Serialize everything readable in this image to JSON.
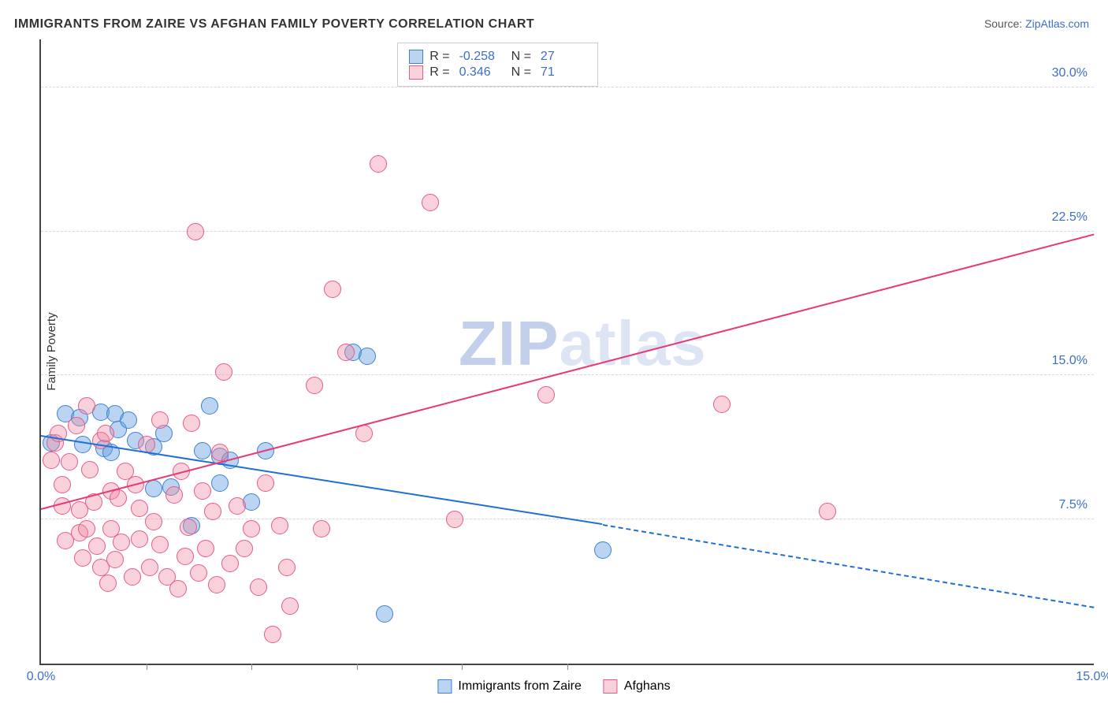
{
  "title": "IMMIGRANTS FROM ZAIRE VS AFGHAN FAMILY POVERTY CORRELATION CHART",
  "source_prefix": "Source: ",
  "source_link": "ZipAtlas.com",
  "ylabel": "Family Poverty",
  "watermark_zip": "ZIP",
  "watermark_atlas": "atlas",
  "chart": {
    "type": "scatter",
    "xlim": [
      0,
      15
    ],
    "ylim": [
      0,
      32.5
    ],
    "x_ticks": [
      0,
      15
    ],
    "x_tick_labels": [
      "0.0%",
      "15.0%"
    ],
    "x_minor_ticks": [
      1.5,
      3,
      4.5,
      6,
      7.5
    ],
    "y_gridlines": [
      7.5,
      15,
      22.5,
      30
    ],
    "y_tick_labels": [
      "7.5%",
      "15.0%",
      "22.5%",
      "30.0%"
    ],
    "grid_color": "#d8d8d8",
    "background_color": "#ffffff",
    "axis_color": "#444444",
    "tick_label_color": "#3b6fc9",
    "marker_radius": 11,
    "marker_opacity": 0.55,
    "series": [
      {
        "name": "Immigrants from Zaire",
        "fill_color": "rgba(105,160,225,0.45)",
        "stroke_color": "#3b82d6",
        "r_value": "-0.258",
        "n_value": "27",
        "trend": {
          "x0": 0,
          "y0": 11.8,
          "x1": 8.0,
          "y1": 7.2,
          "x1_full": 15,
          "y1_full": 2.9,
          "color": "#1f6fd4",
          "dash_after_data": true
        },
        "points": [
          [
            0.15,
            11.5
          ],
          [
            0.35,
            13.0
          ],
          [
            0.55,
            12.8
          ],
          [
            0.6,
            11.4
          ],
          [
            0.85,
            13.1
          ],
          [
            0.9,
            11.2
          ],
          [
            1.05,
            13.0
          ],
          [
            1.1,
            12.2
          ],
          [
            1.0,
            11.0
          ],
          [
            1.25,
            12.7
          ],
          [
            1.35,
            11.6
          ],
          [
            1.6,
            9.1
          ],
          [
            1.6,
            11.3
          ],
          [
            1.75,
            12.0
          ],
          [
            1.85,
            9.2
          ],
          [
            2.15,
            7.2
          ],
          [
            2.3,
            11.1
          ],
          [
            2.4,
            13.4
          ],
          [
            2.55,
            10.8
          ],
          [
            2.55,
            9.4
          ],
          [
            2.7,
            10.6
          ],
          [
            3.0,
            8.4
          ],
          [
            3.2,
            11.1
          ],
          [
            4.45,
            16.2
          ],
          [
            4.65,
            16.0
          ],
          [
            4.9,
            2.6
          ],
          [
            8.0,
            5.9
          ]
        ]
      },
      {
        "name": "Afghans",
        "fill_color": "rgba(240,140,165,0.40)",
        "stroke_color": "#e55a8a",
        "r_value": "0.346",
        "n_value": "71",
        "trend": {
          "x0": 0,
          "y0": 8.0,
          "x1": 15,
          "y1": 22.3,
          "color": "#e63b76",
          "dash_after_data": false
        },
        "points": [
          [
            0.15,
            10.6
          ],
          [
            0.2,
            11.5
          ],
          [
            0.25,
            12.0
          ],
          [
            0.3,
            9.3
          ],
          [
            0.3,
            8.2
          ],
          [
            0.35,
            6.4
          ],
          [
            0.4,
            10.5
          ],
          [
            0.5,
            12.4
          ],
          [
            0.55,
            8.0
          ],
          [
            0.55,
            6.8
          ],
          [
            0.6,
            5.5
          ],
          [
            0.65,
            13.4
          ],
          [
            0.65,
            7.0
          ],
          [
            0.7,
            10.1
          ],
          [
            0.75,
            8.4
          ],
          [
            0.8,
            6.1
          ],
          [
            0.85,
            5.0
          ],
          [
            0.85,
            11.6
          ],
          [
            0.92,
            12.0
          ],
          [
            0.95,
            4.2
          ],
          [
            1.0,
            7.0
          ],
          [
            1.0,
            9.0
          ],
          [
            1.05,
            5.4
          ],
          [
            1.1,
            8.6
          ],
          [
            1.15,
            6.3
          ],
          [
            1.2,
            10.0
          ],
          [
            1.3,
            4.5
          ],
          [
            1.35,
            9.3
          ],
          [
            1.4,
            6.5
          ],
          [
            1.4,
            8.1
          ],
          [
            1.5,
            11.4
          ],
          [
            1.55,
            5.0
          ],
          [
            1.6,
            7.4
          ],
          [
            1.7,
            6.2
          ],
          [
            1.7,
            12.7
          ],
          [
            1.8,
            4.5
          ],
          [
            1.9,
            8.8
          ],
          [
            1.95,
            3.9
          ],
          [
            2.0,
            10.0
          ],
          [
            2.05,
            5.6
          ],
          [
            2.1,
            7.1
          ],
          [
            2.15,
            12.5
          ],
          [
            2.2,
            22.5
          ],
          [
            2.25,
            4.7
          ],
          [
            2.3,
            9.0
          ],
          [
            2.35,
            6.0
          ],
          [
            2.45,
            7.9
          ],
          [
            2.5,
            4.1
          ],
          [
            2.55,
            11.0
          ],
          [
            2.6,
            15.2
          ],
          [
            2.7,
            5.2
          ],
          [
            2.8,
            8.2
          ],
          [
            2.9,
            6.0
          ],
          [
            3.0,
            7.0
          ],
          [
            3.1,
            4.0
          ],
          [
            3.2,
            9.4
          ],
          [
            3.3,
            1.5
          ],
          [
            3.4,
            7.2
          ],
          [
            3.5,
            5.0
          ],
          [
            3.55,
            3.0
          ],
          [
            3.9,
            14.5
          ],
          [
            4.0,
            7.0
          ],
          [
            4.15,
            19.5
          ],
          [
            4.35,
            16.2
          ],
          [
            4.6,
            12.0
          ],
          [
            4.8,
            26.0
          ],
          [
            5.55,
            24.0
          ],
          [
            5.9,
            7.5
          ],
          [
            7.2,
            14.0
          ],
          [
            9.7,
            13.5
          ],
          [
            11.2,
            7.9
          ]
        ]
      }
    ]
  },
  "legend_top": {
    "r_label": "R =",
    "n_label": "N ="
  }
}
